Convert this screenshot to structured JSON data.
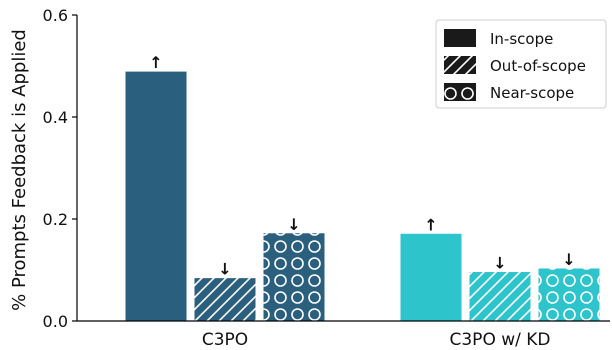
{
  "chart_data": {
    "type": "bar",
    "categories": [
      "C3PO",
      "C3PO w/ KD"
    ],
    "series": [
      {
        "name": "In-scope",
        "values": [
          0.49,
          0.172
        ],
        "pattern": "solid",
        "markers": [
          "↑",
          "↑"
        ]
      },
      {
        "name": "Out-of-scope",
        "values": [
          0.085,
          0.097
        ],
        "pattern": "diagonal-hatch",
        "markers": [
          "↓",
          "↓"
        ]
      },
      {
        "name": "Near-scope",
        "values": [
          0.173,
          0.104
        ],
        "pattern": "circles",
        "markers": [
          "↓",
          "↓"
        ]
      }
    ],
    "group_colors": [
      "#2b5f7e",
      "#2ec4cc"
    ],
    "title": "",
    "xlabel": "",
    "ylabel": "% Prompts Feedback is Applied",
    "ylim": [
      0,
      0.6
    ],
    "yticks": [
      0.0,
      0.2,
      0.4,
      0.6
    ],
    "ytick_labels": [
      "0.0",
      "0.2",
      "0.4",
      "0.6"
    ],
    "grid": false,
    "legend_position": "top-right",
    "legend_swatch_color": "#1a1a1a"
  }
}
